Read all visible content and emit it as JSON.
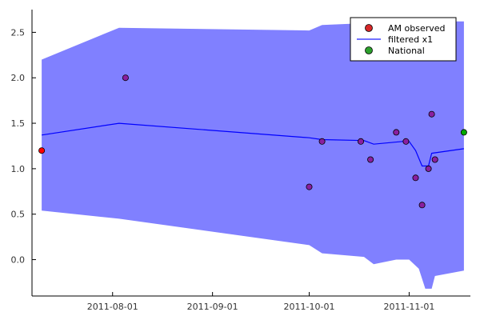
{
  "chart_data": {
    "type": "scatter",
    "x_axis": {
      "type": "date",
      "min": "2011-07-07",
      "max": "2011-11-20",
      "ticks": [
        "2011-08-01",
        "2011-09-01",
        "2011-10-01",
        "2011-11-01"
      ]
    },
    "y_axis": {
      "min": -0.4,
      "max": 2.75,
      "ticks": [
        0.0,
        0.5,
        1.0,
        1.5,
        2.0,
        2.5
      ],
      "tick_labels": [
        "0.0",
        "0.5",
        "1.0",
        "1.5",
        "2.0",
        "2.5"
      ]
    },
    "grid": false,
    "legend_position": "top-right",
    "legend": [
      {
        "label": "AM observed",
        "kind": "marker",
        "color": "#d62728"
      },
      {
        "label": "filtered x1",
        "kind": "line",
        "color": "#1f1fff"
      },
      {
        "label": "National",
        "kind": "marker",
        "color": "#2ca02c"
      }
    ],
    "colors": {
      "band": "#8080ff",
      "filtered_line": "#0000ff",
      "am_observed": "#ff0000",
      "overlap_points": "#8a1fa0",
      "national": "#00aa00"
    },
    "band": [
      {
        "x": "2011-07-10",
        "upper": 2.2,
        "lower": 0.54
      },
      {
        "x": "2011-08-03",
        "upper": 2.55,
        "lower": 0.45
      },
      {
        "x": "2011-10-01",
        "upper": 2.52,
        "lower": 0.16
      },
      {
        "x": "2011-10-05",
        "upper": 2.58,
        "lower": 0.07
      },
      {
        "x": "2011-10-18",
        "upper": 2.6,
        "lower": 0.03
      },
      {
        "x": "2011-10-21",
        "upper": 2.62,
        "lower": -0.05
      },
      {
        "x": "2011-10-28",
        "upper": 2.62,
        "lower": 0.0
      },
      {
        "x": "2011-11-01",
        "upper": 2.62,
        "lower": 0.0
      },
      {
        "x": "2011-11-04",
        "upper": 2.62,
        "lower": -0.1
      },
      {
        "x": "2011-11-06",
        "upper": 2.62,
        "lower": -0.32
      },
      {
        "x": "2011-11-08",
        "upper": 2.62,
        "lower": -0.32
      },
      {
        "x": "2011-11-09",
        "upper": 2.62,
        "lower": -0.18
      },
      {
        "x": "2011-11-18",
        "upper": 2.62,
        "lower": -0.12
      }
    ],
    "filtered_line": [
      {
        "x": "2011-07-10",
        "y": 1.37
      },
      {
        "x": "2011-08-03",
        "y": 1.5
      },
      {
        "x": "2011-10-01",
        "y": 1.34
      },
      {
        "x": "2011-10-05",
        "y": 1.32
      },
      {
        "x": "2011-10-18",
        "y": 1.31
      },
      {
        "x": "2011-10-21",
        "y": 1.27
      },
      {
        "x": "2011-10-30",
        "y": 1.3
      },
      {
        "x": "2011-11-01",
        "y": 1.3
      },
      {
        "x": "2011-11-03",
        "y": 1.2
      },
      {
        "x": "2011-11-05",
        "y": 1.03
      },
      {
        "x": "2011-11-07",
        "y": 1.03
      },
      {
        "x": "2011-11-08",
        "y": 1.17
      },
      {
        "x": "2011-11-18",
        "y": 1.22
      }
    ],
    "points": [
      {
        "series": "AM observed",
        "x": "2011-07-10",
        "y": 1.2,
        "color": "#ff0000"
      },
      {
        "series": "overlap",
        "x": "2011-08-05",
        "y": 2.0,
        "color": "#8a1fa0"
      },
      {
        "series": "overlap",
        "x": "2011-10-01",
        "y": 0.8,
        "color": "#8a1fa0"
      },
      {
        "series": "overlap",
        "x": "2011-10-05",
        "y": 1.3,
        "color": "#8a1fa0"
      },
      {
        "series": "overlap",
        "x": "2011-10-17",
        "y": 1.3,
        "color": "#8a1fa0"
      },
      {
        "series": "overlap",
        "x": "2011-10-20",
        "y": 1.1,
        "color": "#8a1fa0"
      },
      {
        "series": "overlap",
        "x": "2011-10-28",
        "y": 1.4,
        "color": "#8a1fa0"
      },
      {
        "series": "overlap",
        "x": "2011-10-31",
        "y": 1.3,
        "color": "#8a1fa0"
      },
      {
        "series": "overlap",
        "x": "2011-11-03",
        "y": 0.9,
        "color": "#8a1fa0"
      },
      {
        "series": "overlap",
        "x": "2011-11-05",
        "y": 0.6,
        "color": "#8a1fa0"
      },
      {
        "series": "overlap",
        "x": "2011-11-07",
        "y": 1.0,
        "color": "#8a1fa0"
      },
      {
        "series": "overlap",
        "x": "2011-11-08",
        "y": 1.6,
        "color": "#8a1fa0"
      },
      {
        "series": "overlap",
        "x": "2011-11-09",
        "y": 1.1,
        "color": "#8a1fa0"
      },
      {
        "series": "National",
        "x": "2011-11-18",
        "y": 1.4,
        "color": "#00aa00"
      }
    ]
  }
}
